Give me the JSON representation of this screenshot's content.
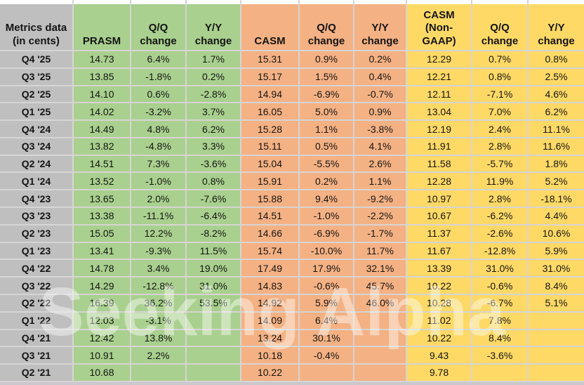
{
  "watermark": "Seeking Alpha",
  "colors": {
    "label_gray": "#BFBFBF",
    "prasm_green": "#A9D08E",
    "casm_orange": "#F4B183",
    "casm_non_gaap_yellow": "#FFD966",
    "gridline": "#D7D4D4",
    "bottom_edge": "#CBC8CD"
  },
  "chart_data": {
    "type": "table",
    "title": "Metrics data (in cents)",
    "corner_header": "Metrics data\n(in cents)",
    "column_headers": [
      "PRASM",
      "Q/Q\nchange",
      "Y/Y\nchange",
      "CASM",
      "Q/Q\nchange",
      "Y/Y\nchange",
      "CASM\n(Non-\nGAAP)",
      "Q/Q\nchange",
      "Y/Y\nchange"
    ],
    "column_groups": [
      {
        "name": "PRASM",
        "color": "#A9D08E",
        "span": 3
      },
      {
        "name": "CASM",
        "color": "#F4B183",
        "span": 3
      },
      {
        "name": "CASM (Non-GAAP)",
        "color": "#FFD966",
        "span": 3
      }
    ],
    "rows": [
      {
        "label": "Q4 '25",
        "values": [
          "14.73",
          "6.4%",
          "1.7%",
          "15.31",
          "0.9%",
          "0.2%",
          "12.29",
          "0.7%",
          "0.8%"
        ]
      },
      {
        "label": "Q3 '25",
        "values": [
          "13.85",
          "-1.8%",
          "0.2%",
          "15.17",
          "1.5%",
          "0.4%",
          "12.21",
          "0.8%",
          "2.5%"
        ]
      },
      {
        "label": "Q2 '25",
        "values": [
          "14.10",
          "0.6%",
          "-2.8%",
          "14.94",
          "-6.9%",
          "-0.7%",
          "12.11",
          "-7.1%",
          "4.6%"
        ]
      },
      {
        "label": "Q1 '25",
        "values": [
          "14.02",
          "-3.2%",
          "3.7%",
          "16.05",
          "5.0%",
          "0.9%",
          "13.04",
          "7.0%",
          "6.2%"
        ]
      },
      {
        "label": "Q4 '24",
        "values": [
          "14.49",
          "4.8%",
          "6.2%",
          "15.28",
          "1.1%",
          "-3.8%",
          "12.19",
          "2.4%",
          "11.1%"
        ]
      },
      {
        "label": "Q3 '24",
        "values": [
          "13.82",
          "-4.8%",
          "3.3%",
          "15.11",
          "0.5%",
          "4.1%",
          "11.91",
          "2.8%",
          "11.6%"
        ]
      },
      {
        "label": "Q2 '24",
        "values": [
          "14.51",
          "7.3%",
          "-3.6%",
          "15.04",
          "-5.5%",
          "2.6%",
          "11.58",
          "-5.7%",
          "1.8%"
        ]
      },
      {
        "label": "Q1 '24",
        "values": [
          "13.52",
          "-1.0%",
          "0.8%",
          "15.91",
          "0.2%",
          "1.1%",
          "12.28",
          "11.9%",
          "5.2%"
        ]
      },
      {
        "label": "Q4 '23",
        "values": [
          "13.65",
          "2.0%",
          "-7.6%",
          "15.88",
          "9.4%",
          "-9.2%",
          "10.97",
          "2.8%",
          "-18.1%"
        ]
      },
      {
        "label": "Q3 '23",
        "values": [
          "13.38",
          "-11.1%",
          "-6.4%",
          "14.51",
          "-1.0%",
          "-2.2%",
          "10.67",
          "-6.2%",
          "4.4%"
        ]
      },
      {
        "label": "Q2 '23",
        "values": [
          "15.05",
          "12.2%",
          "-8.2%",
          "14.66",
          "-6.9%",
          "-1.7%",
          "11.37",
          "-2.6%",
          "10.6%"
        ]
      },
      {
        "label": "Q1 '23",
        "values": [
          "13.41",
          "-9.3%",
          "11.5%",
          "15.74",
          "-10.0%",
          "11.7%",
          "11.67",
          "-12.8%",
          "5.9%"
        ]
      },
      {
        "label": "Q4 '22",
        "values": [
          "14.78",
          "3.4%",
          "19.0%",
          "17.49",
          "17.9%",
          "32.1%",
          "13.39",
          "31.0%",
          "31.0%"
        ]
      },
      {
        "label": "Q3 '22",
        "values": [
          "14.29",
          "-12.8%",
          "31.0%",
          "14.83",
          "-0.6%",
          "45.7%",
          "10.22",
          "-0.6%",
          "8.4%"
        ]
      },
      {
        "label": "Q2 '22",
        "values": [
          "16.39",
          "36.2%",
          "53.5%",
          "14.92",
          "5.9%",
          "46.0%",
          "10.28",
          "-6.7%",
          "5.1%"
        ]
      },
      {
        "label": "Q1 '22",
        "values": [
          "12.03",
          "-3.1%",
          "",
          "14.09",
          "6.4%",
          "",
          "11.02",
          "7.8%",
          ""
        ]
      },
      {
        "label": "Q4 '21",
        "values": [
          "12.42",
          "13.8%",
          "",
          "13.24",
          "30.1%",
          "",
          "10.22",
          "8.4%",
          ""
        ]
      },
      {
        "label": "Q3 '21",
        "values": [
          "10.91",
          "2.2%",
          "",
          "10.18",
          "-0.4%",
          "",
          "9.43",
          "-3.6%",
          ""
        ]
      },
      {
        "label": "Q2 '21",
        "values": [
          "10.68",
          "",
          "",
          "10.22",
          "",
          "",
          "9.78",
          "",
          ""
        ]
      }
    ]
  }
}
